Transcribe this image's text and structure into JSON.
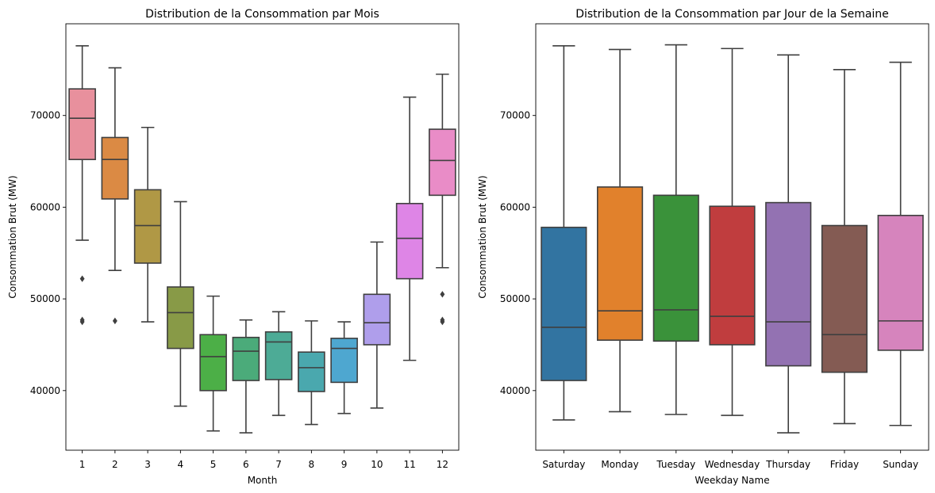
{
  "chart_data": [
    {
      "type": "box",
      "title": "Distribution de la Consommation par Mois",
      "xlabel": "Month",
      "ylabel": "Consommation Brut (MW)",
      "ylim": [
        33500,
        80000
      ],
      "yticks": [
        40000,
        50000,
        60000,
        70000
      ],
      "categories": [
        "1",
        "2",
        "3",
        "4",
        "5",
        "6",
        "7",
        "8",
        "9",
        "10",
        "11",
        "12"
      ],
      "colors": [
        "#E8909D",
        "#DB8A44",
        "#B09845",
        "#889A47",
        "#4CAF47",
        "#4BAB7A",
        "#4DAB96",
        "#4AA8AE",
        "#4EA7D0",
        "#AF9EEB",
        "#DE85E6",
        "#E98CC7"
      ],
      "boxes": [
        {
          "whislo": 56400,
          "q1": 65200,
          "med": 69700,
          "q3": 72900,
          "whishi": 77600,
          "fliers": [
            52200,
            47700,
            47500
          ]
        },
        {
          "whislo": 53100,
          "q1": 60900,
          "med": 65200,
          "q3": 67600,
          "whishi": 75200,
          "fliers": [
            47600
          ]
        },
        {
          "whislo": 47500,
          "q1": 53900,
          "med": 58000,
          "q3": 61900,
          "whishi": 68700,
          "fliers": []
        },
        {
          "whislo": 38300,
          "q1": 44600,
          "med": 48500,
          "q3": 51300,
          "whishi": 60600,
          "fliers": []
        },
        {
          "whislo": 35600,
          "q1": 40000,
          "med": 43700,
          "q3": 46100,
          "whishi": 50300,
          "fliers": []
        },
        {
          "whislo": 35400,
          "q1": 41100,
          "med": 44300,
          "q3": 45800,
          "whishi": 47700,
          "fliers": []
        },
        {
          "whislo": 37300,
          "q1": 41200,
          "med": 45300,
          "q3": 46400,
          "whishi": 48600,
          "fliers": []
        },
        {
          "whislo": 36300,
          "q1": 39900,
          "med": 42500,
          "q3": 44200,
          "whishi": 47600,
          "fliers": []
        },
        {
          "whislo": 37500,
          "q1": 40900,
          "med": 44600,
          "q3": 45700,
          "whishi": 47500,
          "fliers": []
        },
        {
          "whislo": 38100,
          "q1": 45000,
          "med": 47400,
          "q3": 50500,
          "whishi": 56200,
          "fliers": []
        },
        {
          "whislo": 43300,
          "q1": 52200,
          "med": 56600,
          "q3": 60400,
          "whishi": 72000,
          "fliers": []
        },
        {
          "whislo": 53400,
          "q1": 61300,
          "med": 65100,
          "q3": 68500,
          "whishi": 74500,
          "fliers": [
            50500,
            47700,
            47500
          ]
        }
      ]
    },
    {
      "type": "box",
      "title": "Distribution de la Consommation par Jour de la Semaine",
      "xlabel": "Weekday Name",
      "ylabel": "Consommation Brut (MW)",
      "ylim": [
        33500,
        80000
      ],
      "yticks": [
        40000,
        50000,
        60000,
        70000
      ],
      "categories": [
        "Saturday",
        "Monday",
        "Tuesday",
        "Wednesday",
        "Thursday",
        "Friday",
        "Sunday"
      ],
      "colors": [
        "#3274A1",
        "#E1812C",
        "#3A923A",
        "#C03D3E",
        "#9372B2",
        "#845B53",
        "#D684BD"
      ],
      "boxes": [
        {
          "whislo": 36800,
          "q1": 41100,
          "med": 46900,
          "q3": 57800,
          "whishi": 77600,
          "fliers": []
        },
        {
          "whislo": 37700,
          "q1": 45500,
          "med": 48700,
          "q3": 62200,
          "whishi": 77200,
          "fliers": []
        },
        {
          "whislo": 37400,
          "q1": 45400,
          "med": 48800,
          "q3": 61300,
          "whishi": 77700,
          "fliers": []
        },
        {
          "whislo": 37300,
          "q1": 45000,
          "med": 48100,
          "q3": 60100,
          "whishi": 77300,
          "fliers": []
        },
        {
          "whislo": 35400,
          "q1": 42700,
          "med": 47500,
          "q3": 60500,
          "whishi": 76600,
          "fliers": []
        },
        {
          "whislo": 36400,
          "q1": 42000,
          "med": 46100,
          "q3": 58000,
          "whishi": 75000,
          "fliers": []
        },
        {
          "whislo": 36200,
          "q1": 44400,
          "med": 47600,
          "q3": 59100,
          "whishi": 75800,
          "fliers": []
        }
      ]
    }
  ]
}
